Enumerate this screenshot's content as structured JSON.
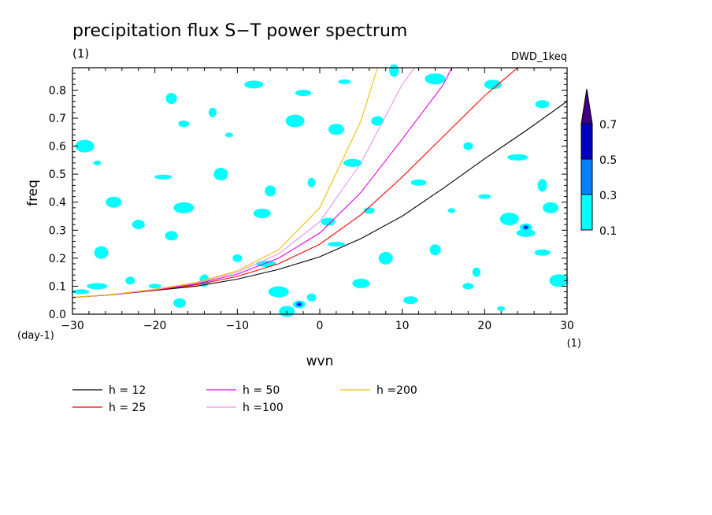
{
  "chart_data": {
    "type": "contour",
    "title": "precipitation flux S−T power spectrum",
    "title_units": "(1)",
    "dataset_label": "DWD_1keq",
    "xlabel": "wvn",
    "ylabel": "freq",
    "x_units": "(1)",
    "y_units": "(day-1)",
    "xlim": [
      -30,
      30
    ],
    "ylim": [
      0,
      0.88
    ],
    "x_ticks": [
      -30,
      -20,
      -10,
      0,
      10,
      20,
      30
    ],
    "x_tick_labels": [
      "−30",
      "−20",
      "−10",
      "0",
      "10",
      "20",
      "30"
    ],
    "y_ticks": [
      0,
      0.1,
      0.2,
      0.3,
      0.4,
      0.5,
      0.6,
      0.7,
      0.8
    ],
    "y_tick_labels": [
      "0.0",
      "0.1",
      "0.2",
      "0.3",
      "0.4",
      "0.5",
      "0.6",
      "0.7",
      "0.8"
    ],
    "colorbar": {
      "levels": [
        "0.1",
        "0.3",
        "0.5",
        "0.7"
      ],
      "colors": [
        "#00ffff",
        "#0080ff",
        "#0000c0",
        "#400080"
      ]
    },
    "series": [
      {
        "name": "h = 12",
        "color": "#000000",
        "x": [
          -30,
          -25,
          -20,
          -15,
          -10,
          -5,
          0,
          5,
          10,
          15,
          20,
          25,
          30
        ],
        "y": [
          0.06,
          0.07,
          0.085,
          0.1,
          0.125,
          0.16,
          0.205,
          0.27,
          0.35,
          0.45,
          0.555,
          0.655,
          0.76
        ]
      },
      {
        "name": "h = 25",
        "color": "#ff0000",
        "x": [
          -30,
          -25,
          -20,
          -15,
          -10,
          -5,
          0,
          5,
          10,
          15,
          20,
          24
        ],
        "y": [
          0.06,
          0.07,
          0.086,
          0.105,
          0.135,
          0.18,
          0.25,
          0.355,
          0.49,
          0.635,
          0.78,
          0.88
        ]
      },
      {
        "name": "h = 50",
        "color": "#e600e6",
        "x": [
          -30,
          -25,
          -20,
          -15,
          -10,
          -5,
          0,
          5,
          10,
          15,
          16
        ],
        "y": [
          0.06,
          0.07,
          0.087,
          0.108,
          0.143,
          0.2,
          0.29,
          0.435,
          0.625,
          0.82,
          0.88
        ]
      },
      {
        "name": "h =100",
        "color": "#e696e6",
        "x": [
          -30,
          -25,
          -20,
          -15,
          -10,
          -5,
          0,
          5,
          10,
          11.5
        ],
        "y": [
          0.06,
          0.071,
          0.088,
          0.111,
          0.15,
          0.215,
          0.33,
          0.54,
          0.82,
          0.88
        ]
      },
      {
        "name": "h =200",
        "color": "#f0c000",
        "x": [
          -30,
          -25,
          -20,
          -15,
          -10,
          -5,
          0,
          5,
          7
        ],
        "y": [
          0.06,
          0.071,
          0.089,
          0.113,
          0.155,
          0.23,
          0.38,
          0.69,
          0.88
        ]
      }
    ],
    "power_blobs_0_1_to_0_3": [
      [
        -27,
        0.54
      ],
      [
        -28.5,
        0.6
      ],
      [
        -25,
        0.4
      ],
      [
        -22,
        0.32
      ],
      [
        -23,
        0.12
      ],
      [
        -27,
        0.1
      ],
      [
        -29,
        0.08
      ],
      [
        -26.5,
        0.22
      ],
      [
        -18,
        0.77
      ],
      [
        -13,
        0.72
      ],
      [
        -8,
        0.82
      ],
      [
        -2,
        0.79
      ],
      [
        3,
        0.83
      ],
      [
        9,
        0.87
      ],
      [
        14,
        0.84
      ],
      [
        21,
        0.82
      ],
      [
        27,
        0.75
      ],
      [
        -16.5,
        0.68
      ],
      [
        -11,
        0.64
      ],
      [
        -3,
        0.69
      ],
      [
        2,
        0.66
      ],
      [
        7,
        0.69
      ],
      [
        18,
        0.6
      ],
      [
        24,
        0.56
      ],
      [
        -19,
        0.49
      ],
      [
        -12,
        0.5
      ],
      [
        -6,
        0.44
      ],
      [
        -1,
        0.47
      ],
      [
        4,
        0.54
      ],
      [
        12,
        0.47
      ],
      [
        20,
        0.42
      ],
      [
        27,
        0.46
      ],
      [
        -16.5,
        0.38
      ],
      [
        -7,
        0.36
      ],
      [
        1,
        0.33
      ],
      [
        6,
        0.37
      ],
      [
        16,
        0.37
      ],
      [
        23,
        0.34
      ],
      [
        28,
        0.38
      ],
      [
        -18,
        0.28
      ],
      [
        -10,
        0.2
      ],
      [
        -6.5,
        0.18
      ],
      [
        2,
        0.25
      ],
      [
        8,
        0.2
      ],
      [
        14,
        0.23
      ],
      [
        19,
        0.15
      ],
      [
        25,
        0.29
      ],
      [
        27,
        0.22
      ],
      [
        -20,
        0.1
      ],
      [
        -14,
        0.12
      ],
      [
        -5,
        0.08
      ],
      [
        5,
        0.11
      ],
      [
        11,
        0.05
      ],
      [
        18,
        0.1
      ],
      [
        22,
        0.02
      ],
      [
        29,
        0.12
      ],
      [
        -4,
        0.01
      ],
      [
        -17,
        0.04
      ],
      [
        -1,
        0.06
      ]
    ],
    "power_blobs_0_3_to_0_5": [
      [
        -2.5,
        0.035
      ],
      [
        25,
        0.31
      ]
    ],
    "legend_position": "bottom"
  }
}
